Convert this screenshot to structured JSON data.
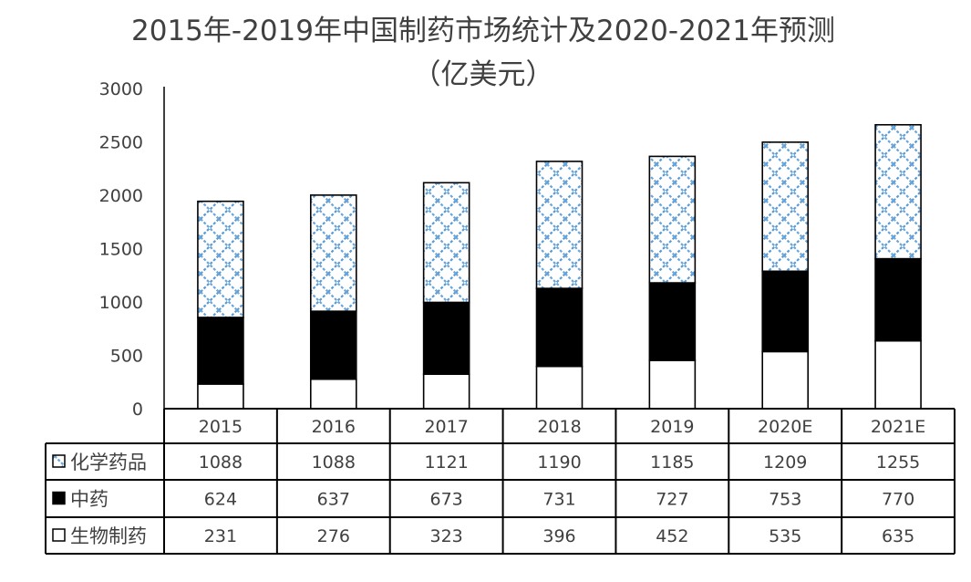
{
  "chart_data": {
    "type": "bar",
    "stacked": true,
    "title": "2015年-2019年中国制药市场统计及2020-2021年预测",
    "subtitle": "（亿美元）",
    "categories": [
      "2015",
      "2016",
      "2017",
      "2018",
      "2019",
      "2020E",
      "2021E"
    ],
    "series": [
      {
        "name": "生物制药",
        "values": [
          231,
          276,
          323,
          396,
          452,
          535,
          635
        ],
        "fill": "#ffffff",
        "pattern": "none"
      },
      {
        "name": "中药",
        "values": [
          624,
          637,
          673,
          731,
          727,
          753,
          770
        ],
        "fill": "#000000",
        "pattern": "none"
      },
      {
        "name": "化学药品",
        "values": [
          1088,
          1088,
          1121,
          1190,
          1185,
          1209,
          1255
        ],
        "fill": "#5b9bd5",
        "pattern": "diagonal-crosshatch"
      }
    ],
    "table_row_order": [
      "化学药品",
      "中药",
      "生物制药"
    ],
    "ylim": [
      0,
      3000
    ],
    "yticks": [
      0,
      500,
      1000,
      1500,
      2000,
      2500,
      3000
    ],
    "grid": false,
    "legend": "data-table"
  }
}
